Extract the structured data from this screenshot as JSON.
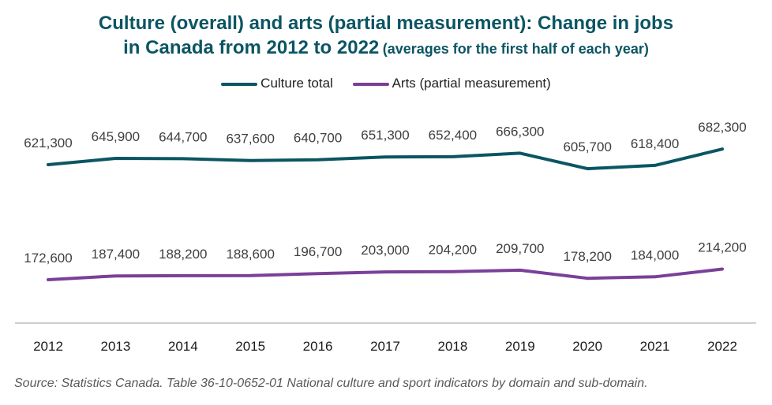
{
  "title": {
    "line1": "Culture (overall) and arts (partial measurement): Change in jobs",
    "line2": "in Canada from 2012 to 2022",
    "line2_small": "(averages for the first half of each year)"
  },
  "source": "Source: Statistics Canada. Table 36-10-0652-01  National culture and sport indicators by domain and sub-domain.",
  "colors": {
    "culture": "#0b5563",
    "arts": "#7b3f98",
    "axis": "#bfbfbf"
  },
  "chart_data": {
    "type": "line",
    "x": [
      "2012",
      "2013",
      "2014",
      "2015",
      "2016",
      "2017",
      "2018",
      "2019",
      "2020",
      "2021",
      "2022"
    ],
    "series": [
      {
        "name": "Culture total",
        "values": [
          621300,
          645900,
          644700,
          637600,
          640700,
          651300,
          652400,
          666300,
          605700,
          618400,
          682300
        ],
        "labels": [
          "621,300",
          "645,900",
          "644,700",
          "637,600",
          "640,700",
          "651,300",
          "652,400",
          "666,300",
          "605,700",
          "618,400",
          "682,300"
        ]
      },
      {
        "name": "Arts (partial measurement)",
        "values": [
          172600,
          187400,
          188200,
          188600,
          196700,
          203000,
          204200,
          209700,
          178200,
          184000,
          214200
        ],
        "labels": [
          "172,600",
          "187,400",
          "188,200",
          "188,600",
          "196,700",
          "203,000",
          "204,200",
          "209,700",
          "178,200",
          "184,000",
          "214,200"
        ]
      }
    ],
    "ylim": [
      0,
      750000
    ],
    "legend": "top-center",
    "grid": false
  }
}
